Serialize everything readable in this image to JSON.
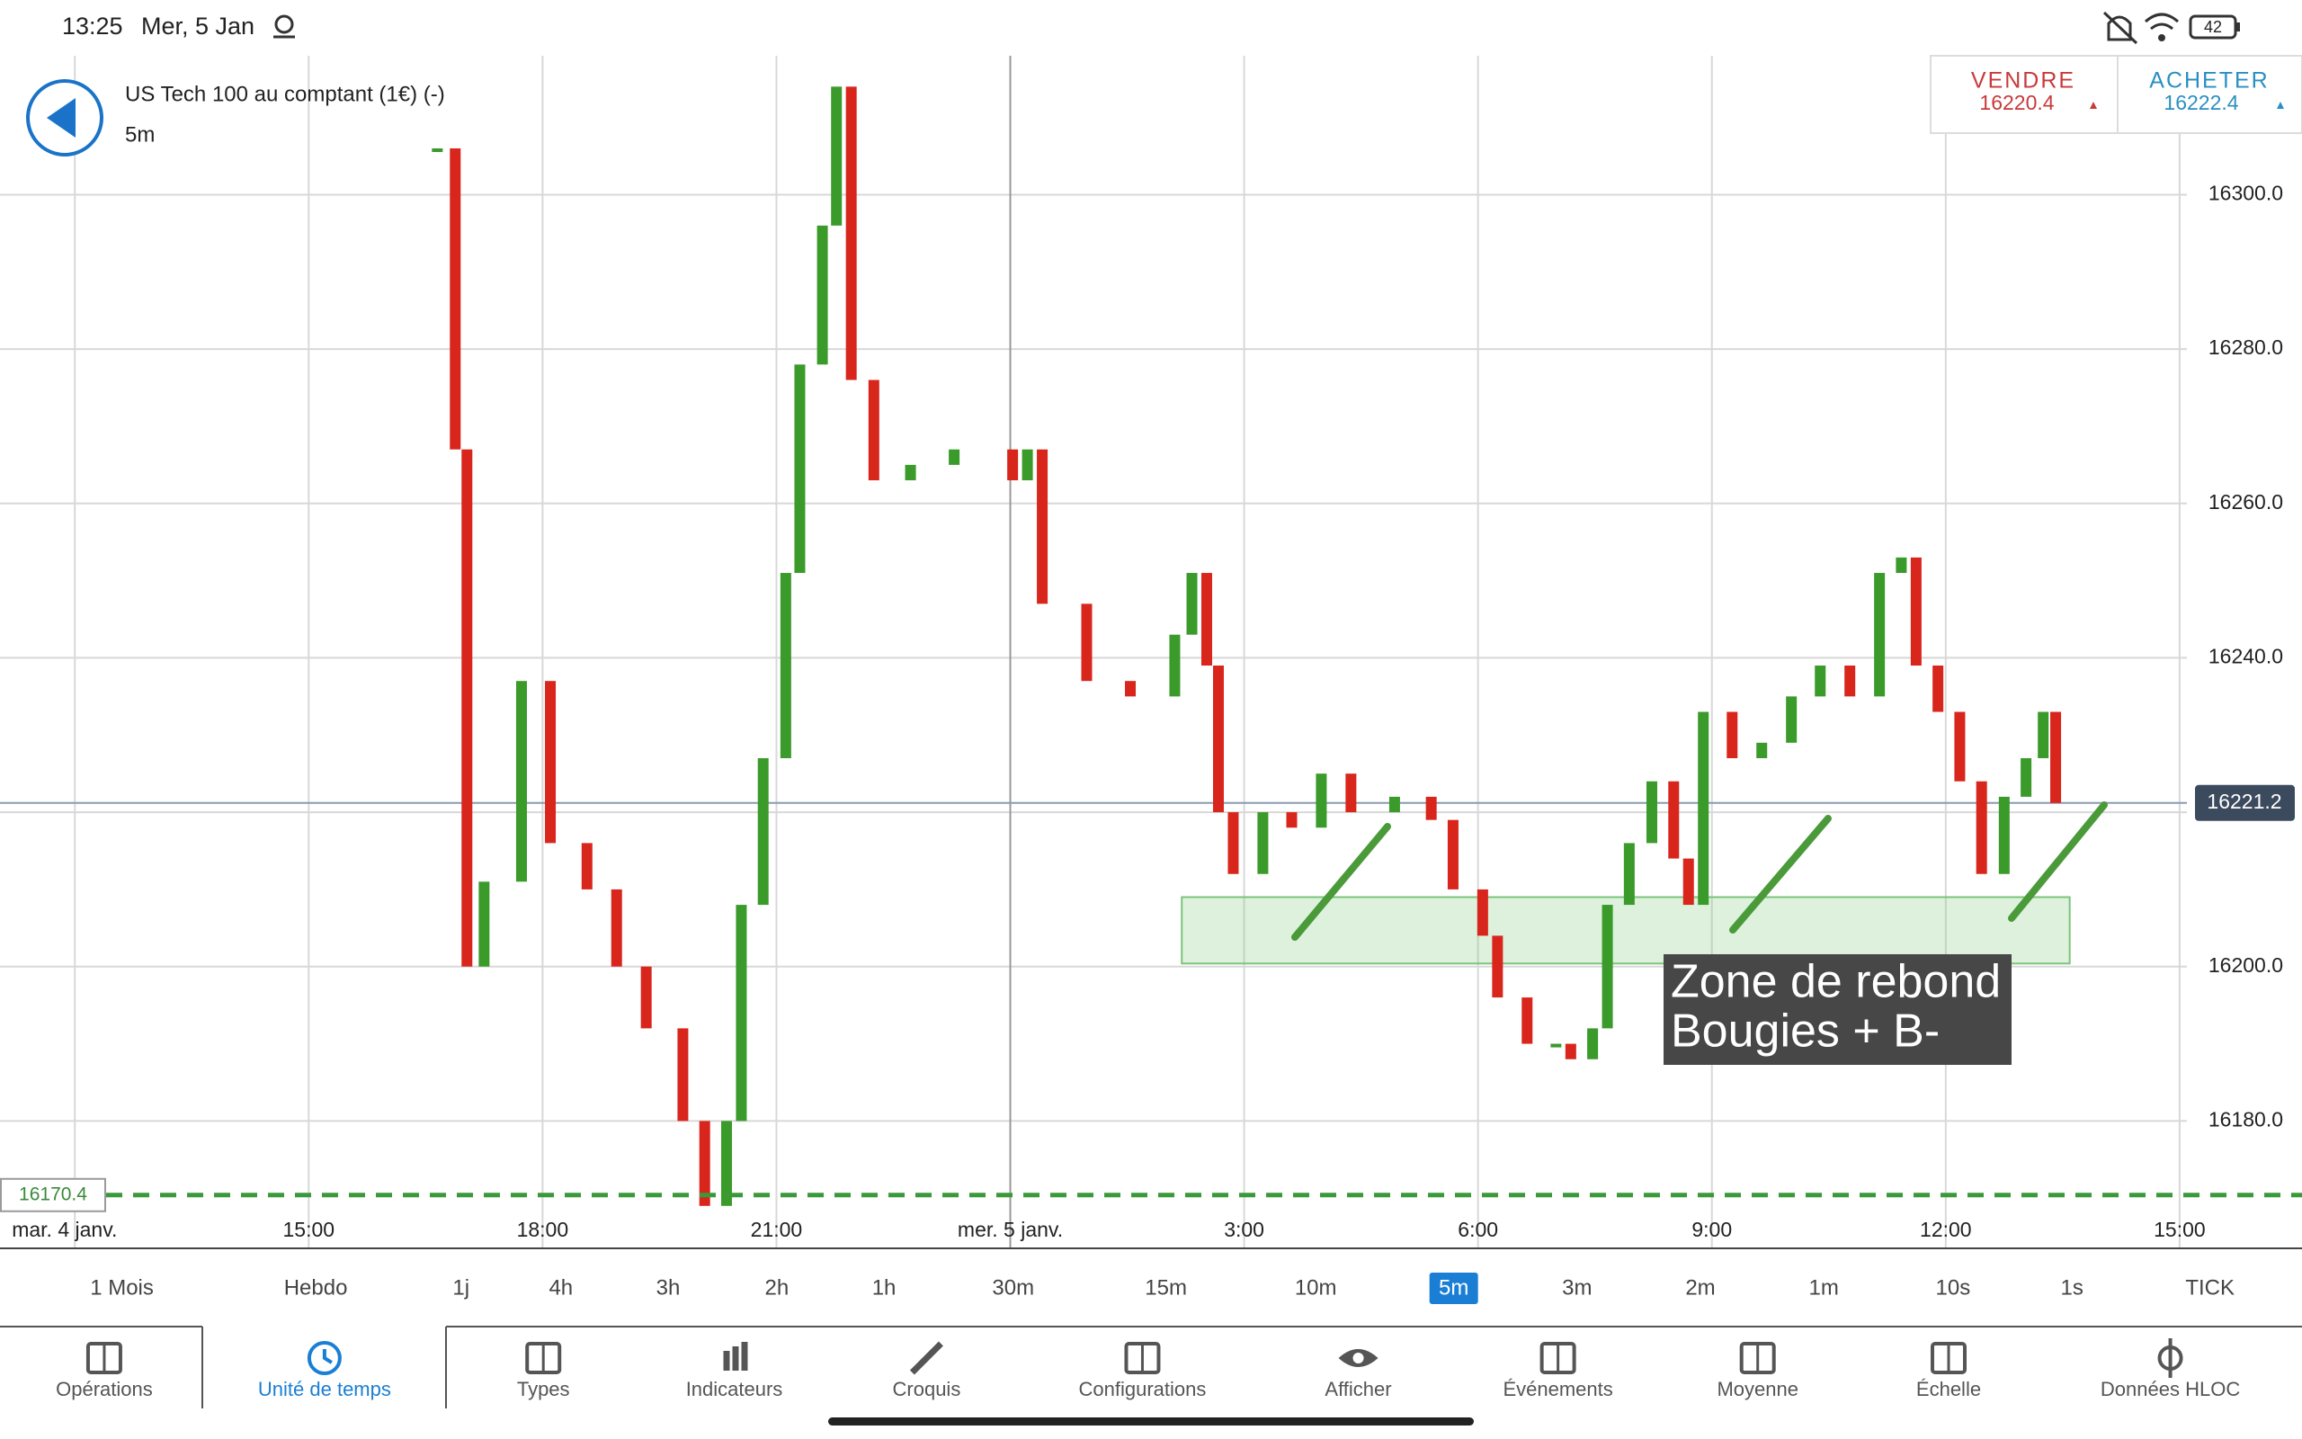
{
  "status_bar": {
    "time": "13:25",
    "date": "Mer, 5 Jan",
    "battery": "42"
  },
  "instrument": {
    "name": "US Tech 100 au comptant (1€) (-)",
    "timeframe": "5m"
  },
  "quote": {
    "sell_label": "VENDRE",
    "sell_price": "16220.4",
    "buy_label": "ACHETER",
    "buy_price": "16222.4"
  },
  "chart_data": {
    "type": "candlestick",
    "x": [
      16.65,
      16.88,
      17.03,
      17.25,
      17.73,
      18.1,
      18.57,
      18.95,
      19.33,
      19.8,
      20.08,
      20.36,
      20.55,
      20.83,
      21.12,
      21.3,
      21.59,
      21.77,
      21.96,
      22.25,
      22.72,
      23.28,
      24.03,
      24.22,
      24.41,
      24.98,
      25.54,
      26.11,
      26.33,
      26.52,
      26.67,
      26.86,
      27.24,
      27.61,
      27.99,
      28.37,
      28.93,
      29.4,
      29.68,
      30.06,
      30.25,
      30.63,
      31.0,
      31.19,
      31.47,
      31.66,
      31.94,
      32.23,
      32.51,
      32.7,
      32.89,
      33.26,
      33.64,
      34.02,
      34.39,
      34.77,
      35.15,
      35.43,
      35.62,
      35.9,
      36.18,
      36.46,
      36.75,
      37.03,
      37.25,
      37.41
    ],
    "values": [
      16306,
      16267,
      16200,
      16211,
      16237,
      16216,
      16210,
      16200,
      16192,
      16180,
      16169,
      16180,
      16208,
      16227,
      16251,
      16278,
      16296,
      16314,
      16276,
      16263,
      16265,
      16267,
      16263,
      16267,
      16247,
      16237,
      16235,
      16243,
      16251,
      16239,
      16220,
      16212,
      16220,
      16218,
      16225,
      16220,
      16222,
      16219,
      16210,
      16204,
      16196,
      16190,
      16190,
      16188,
      16192,
      16208,
      16216,
      16224,
      16214,
      16208,
      16233,
      16227,
      16229,
      16235,
      16239,
      16235,
      16251,
      16253,
      16239,
      16233,
      16224,
      16212,
      16222,
      16227,
      16233,
      16221.2
    ],
    "xlim": [
      11.04,
      40.57
    ],
    "ylim": [
      16163.5,
      16318
    ],
    "xticks": [
      {
        "value": 12,
        "label": "mar. 4 janv."
      },
      {
        "value": 15,
        "label": "15:00"
      },
      {
        "value": 18,
        "label": "18:00"
      },
      {
        "value": 21,
        "label": "21:00"
      },
      {
        "value": 24,
        "label": "mer. 5 janv."
      },
      {
        "value": 27,
        "label": "3:00"
      },
      {
        "value": 30,
        "label": "6:00"
      },
      {
        "value": 33,
        "label": "9:00"
      },
      {
        "value": 36,
        "label": "12:00"
      },
      {
        "value": 39,
        "label": "15:00"
      }
    ],
    "yticks": [
      {
        "value": 16180,
        "label": "16180.0"
      },
      {
        "value": 16200,
        "label": "16200.0"
      },
      {
        "value": 16220,
        "label": "16220.0"
      },
      {
        "value": 16240,
        "label": "16240.0"
      },
      {
        "value": 16260,
        "label": "16260.0"
      },
      {
        "value": 16280,
        "label": "16280.0"
      },
      {
        "value": 16300,
        "label": "16300.0"
      }
    ],
    "grid": true,
    "up_color": "#3a9a2a",
    "down_color": "#d8261c",
    "current_price": 16221.2,
    "alert_price": 16170.4,
    "zone": {
      "low": 16200.4,
      "high": 16209.0,
      "x": [
        26.2,
        37.59
      ]
    },
    "annotation": [
      "Zone de rebond",
      "Bougies + B-"
    ]
  },
  "timeframes": {
    "items": [
      "1 Mois",
      "Hebdo",
      "1j",
      "4h",
      "3h",
      "2h",
      "1h",
      "30m",
      "15m",
      "10m",
      "5m",
      "3m",
      "2m",
      "1m",
      "10s",
      "1s",
      "TICK"
    ],
    "active": 10
  },
  "toolbar": {
    "items": [
      "Opérations",
      "Unité de temps",
      "Types",
      "Indicateurs",
      "Croquis",
      "Configurations",
      "Afficher",
      "Événements",
      "Moyenne",
      "Échelle",
      "Données HLOC"
    ],
    "active": 1
  }
}
